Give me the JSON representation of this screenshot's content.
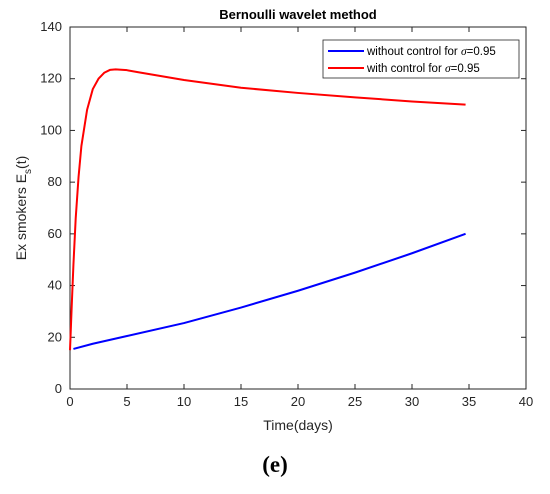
{
  "panel_label": "(e)",
  "chart_data": {
    "type": "line",
    "title": "Bernoulli wavelet method",
    "xlabel": "Time(days)",
    "ylabel_main": "Ex smokers E",
    "ylabel_sub": "s",
    "ylabel_tail": "(t)",
    "xlim": [
      0,
      40
    ],
    "ylim": [
      0,
      140
    ],
    "xticks": [
      "0",
      "5",
      "10",
      "15",
      "20",
      "25",
      "30",
      "35",
      "40"
    ],
    "yticks": [
      "0",
      "20",
      "40",
      "60",
      "80",
      "100",
      "120",
      "140"
    ],
    "grid": false,
    "legend_position": "top-right",
    "series": [
      {
        "name": "without control for σ=0.95",
        "legend_prefix": "without control for ",
        "legend_symbol": "σ",
        "legend_suffix": "=0.95",
        "color": "#0000ff",
        "x": [
          0.3,
          2,
          5,
          10,
          15,
          20,
          25,
          30,
          34.7
        ],
        "y": [
          15.5,
          17.5,
          20.5,
          25.5,
          31.5,
          38,
          45,
          52.5,
          60
        ]
      },
      {
        "name": "with control for σ=0.95",
        "legend_prefix": "with control for ",
        "legend_symbol": "σ",
        "legend_suffix": "=0.95",
        "color": "#ff0000",
        "x": [
          0,
          0.15,
          0.3,
          0.5,
          0.75,
          1,
          1.5,
          2,
          2.5,
          3,
          3.5,
          4,
          5,
          6,
          8,
          10,
          15,
          20,
          25,
          30,
          34.7
        ],
        "y": [
          15,
          32,
          48,
          66,
          82,
          94,
          108,
          116,
          120,
          122.3,
          123.4,
          123.6,
          123.3,
          122.5,
          121,
          119.5,
          116.5,
          114.5,
          112.8,
          111.2,
          110
        ]
      }
    ]
  }
}
